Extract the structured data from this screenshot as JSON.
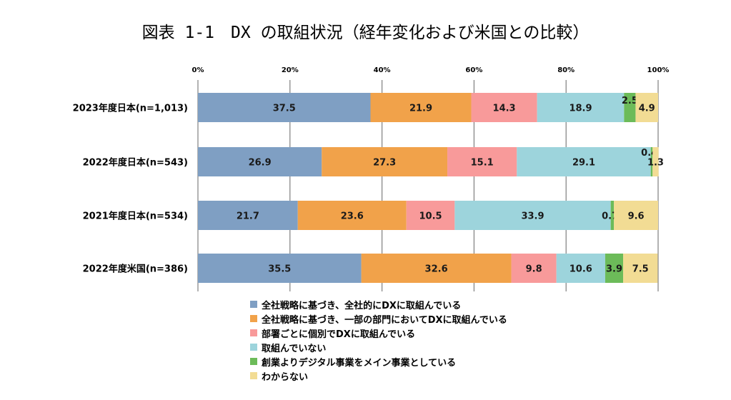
{
  "title": "図表 1-1　DX の取組状況（経年変化および米国との比較）",
  "colors": {
    "axis": "#9a9a9a",
    "grid": "#7f7f7f",
    "bar_text": "#1a1a1a",
    "series": [
      "#7f9fc3",
      "#f1a24a",
      "#f89a9a",
      "#9dd4dc",
      "#6cbb59",
      "#f2dc94"
    ]
  },
  "chart_data": {
    "type": "bar",
    "orientation": "horizontal",
    "stacked": true,
    "title": "図表 1-1　DX の取組状況（経年変化および米国との比較）",
    "xlim": [
      0,
      100
    ],
    "x_ticks": [
      "0%",
      "20%",
      "40%",
      "60%",
      "80%",
      "100%"
    ],
    "grid": true,
    "legend_position": "bottom",
    "categories": [
      "2023年度日本(n=1,013)",
      "2022年度日本(n=543)",
      "2021年度日本(n=534)",
      "2022年度米国(n=386)"
    ],
    "series": [
      {
        "name": "全社戦略に基づき、全社的にDXに取組んでいる",
        "values": [
          37.5,
          26.9,
          21.7,
          35.5
        ]
      },
      {
        "name": "全社戦略に基づき、一部の部門においてDXに取組んでいる",
        "values": [
          21.9,
          27.3,
          23.6,
          32.6
        ]
      },
      {
        "name": "部署ごとに個別でDXに取組んでいる",
        "values": [
          14.3,
          15.1,
          10.5,
          9.8
        ]
      },
      {
        "name": "取組んでいない",
        "values": [
          18.9,
          29.1,
          33.9,
          10.6
        ]
      },
      {
        "name": "創業よりデジタル事業をメイン事業としている",
        "values": [
          2.5,
          0.4,
          0.7,
          3.9
        ]
      },
      {
        "name": "わからない",
        "values": [
          4.9,
          1.3,
          9.6,
          7.5
        ]
      }
    ]
  }
}
